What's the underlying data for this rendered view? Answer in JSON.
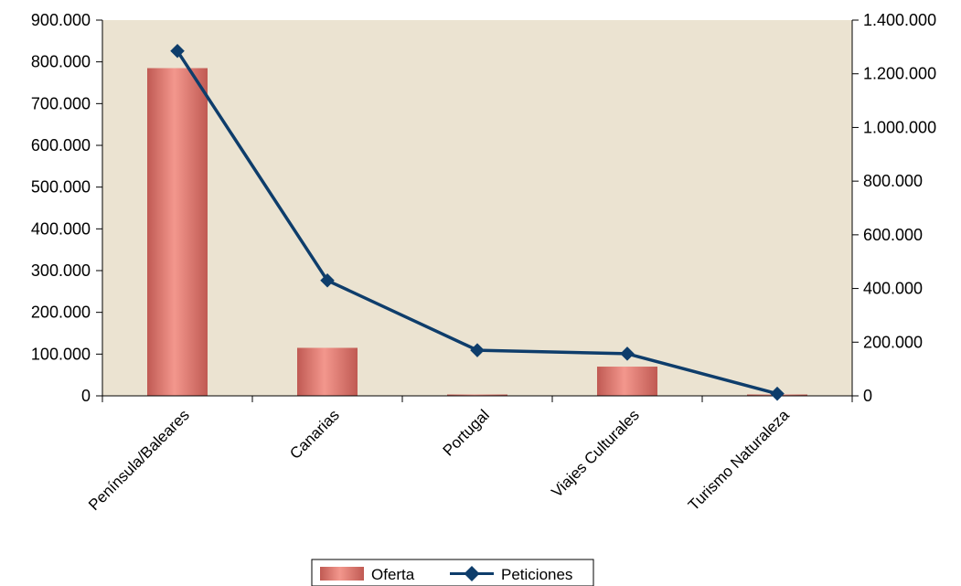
{
  "chart_data": {
    "type": "bar",
    "categories": [
      "Península/Baleares",
      "Canarias",
      "Portugal",
      "Viajes Culturales",
      "Turismo Naturaleza"
    ],
    "series": [
      {
        "name": "Oferta",
        "type": "bar",
        "axis": "left",
        "values": [
          785000,
          115000,
          3000,
          70000,
          2000
        ],
        "color": "#e2837a"
      },
      {
        "name": "Peticiones",
        "type": "line",
        "axis": "right",
        "values": [
          1285000,
          430000,
          170000,
          157000,
          8000
        ],
        "color": "#0e3d6b",
        "marker": "diamond"
      }
    ],
    "y_left": {
      "min": 0,
      "max": 900000,
      "ticks": [
        "0",
        "100.000",
        "200.000",
        "300.000",
        "400.000",
        "500.000",
        "600.000",
        "700.000",
        "800.000",
        "900.000"
      ]
    },
    "y_right": {
      "min": 0,
      "max": 1400000,
      "ticks": [
        "0",
        "200.000",
        "400.000",
        "600.000",
        "800.000",
        "1.000.000",
        "1.200.000",
        "1.400.000"
      ]
    },
    "plot_background": "#ebe3d1",
    "grid": false,
    "legend_position": "bottom",
    "title": "",
    "xlabel": "",
    "ylabel": ""
  }
}
